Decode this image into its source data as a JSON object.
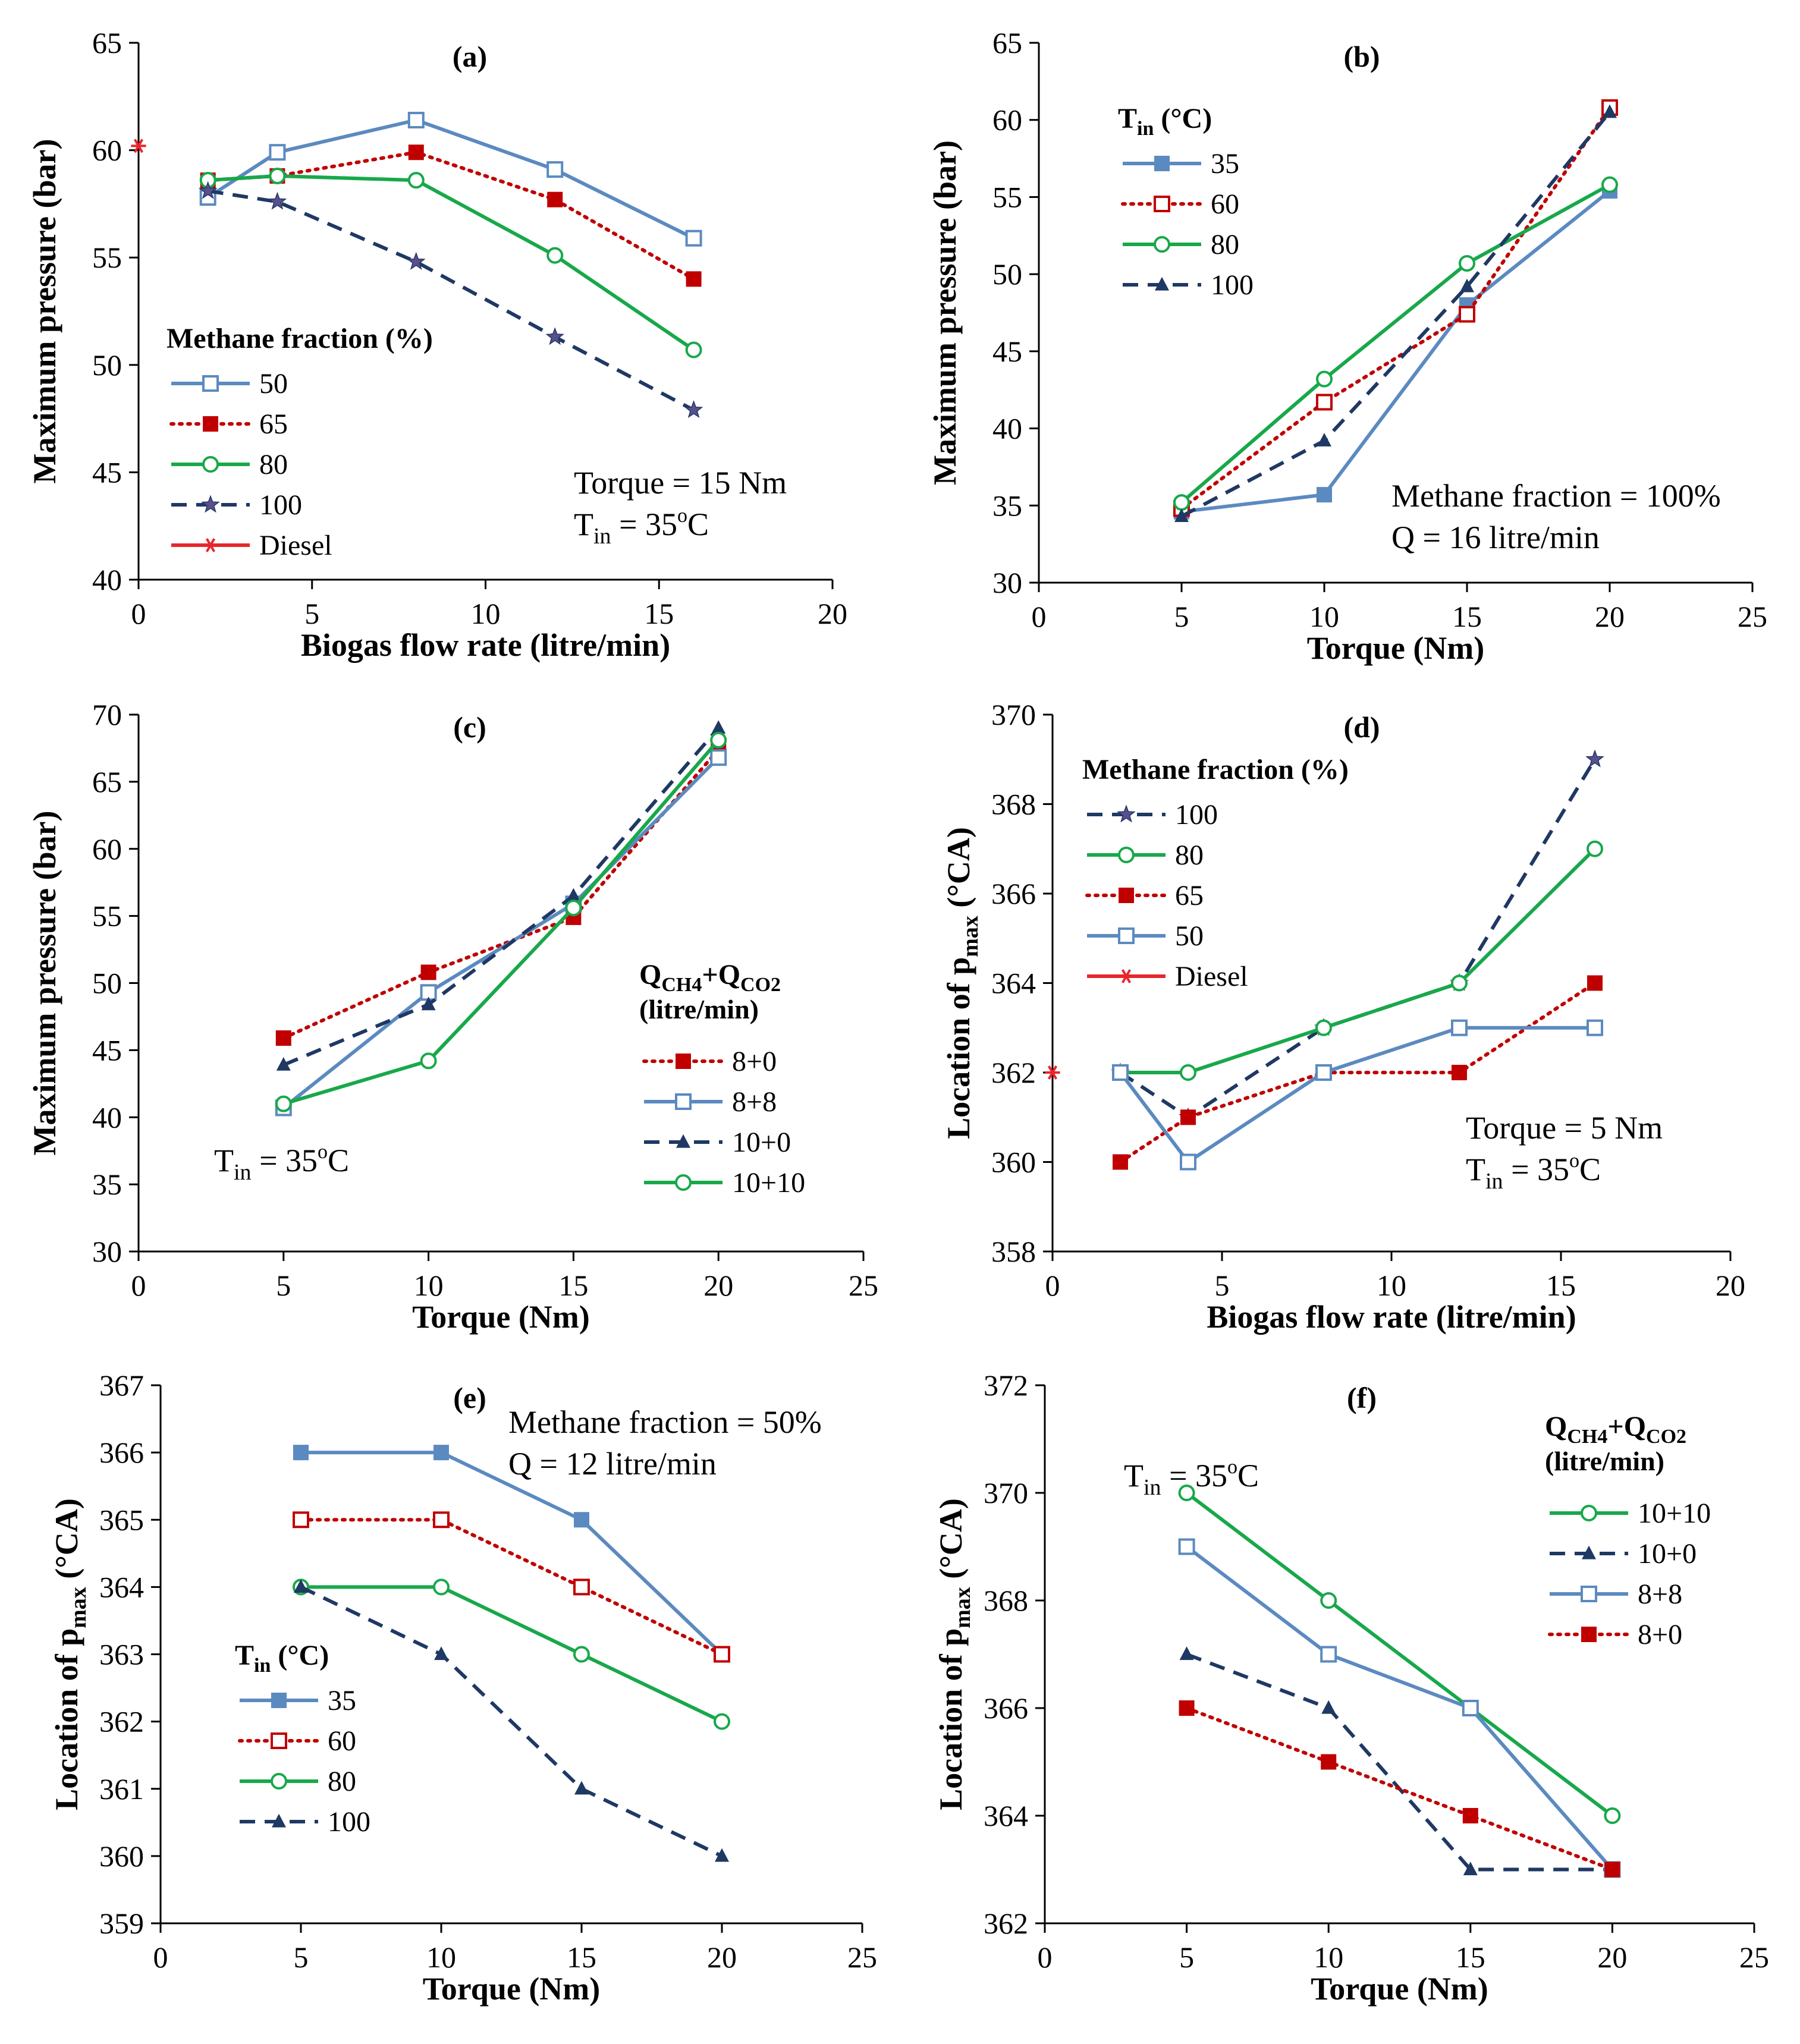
{
  "chart_data": [
    {
      "id": "a",
      "type": "line",
      "panel_label": "(a)",
      "title": "",
      "xlabel": "Biogas flow rate (litre/min)",
      "ylabel": "Maximum pressure (bar)",
      "xlim": [
        0,
        20
      ],
      "ylim": [
        40,
        65
      ],
      "xticks": [
        0,
        5,
        10,
        15,
        20
      ],
      "yticks": [
        40,
        45,
        50,
        55,
        60,
        65
      ],
      "legend": {
        "title": "Methane fraction (%)",
        "title_sub": "",
        "title_post": "",
        "title_line2": "",
        "position": "lower-left"
      },
      "annotation": {
        "line1": "Torque = 15 Nm",
        "line2_pre": "T",
        "line2_sub": "in",
        "line2_post": " = 35",
        "line2_sup": "o",
        "line2_end": "C"
      },
      "series": [
        {
          "name": "50",
          "color": "#5B8AC0",
          "dash": "solid",
          "marker": "square-open",
          "x": [
            2,
            4,
            8,
            12,
            16
          ],
          "values": [
            57.8,
            59.9,
            61.4,
            59.1,
            55.9
          ]
        },
        {
          "name": "65",
          "color": "#C00000",
          "dash": "dot",
          "marker": "square-filled",
          "x": [
            2,
            4,
            8,
            12,
            16
          ],
          "values": [
            58.6,
            58.8,
            59.9,
            57.7,
            54.0
          ]
        },
        {
          "name": "80",
          "color": "#18A84A",
          "dash": "solid",
          "marker": "circle-open",
          "x": [
            2,
            4,
            8,
            12,
            16
          ],
          "values": [
            58.6,
            58.8,
            58.6,
            55.1,
            50.7
          ]
        },
        {
          "name": "100",
          "color": "#1F3864",
          "dash": "dash",
          "marker": "star-filled",
          "x": [
            2,
            4,
            8,
            12,
            16
          ],
          "values": [
            58.1,
            57.6,
            54.8,
            51.3,
            47.9
          ]
        },
        {
          "name": "Diesel",
          "color": "#E8262B",
          "dash": "solid",
          "marker": "asterisk",
          "x": [
            0
          ],
          "values": [
            60.2
          ]
        }
      ]
    },
    {
      "id": "b",
      "type": "line",
      "panel_label": "(b)",
      "title": "",
      "xlabel": "Torque (Nm)",
      "ylabel": "Maximum pressure (bar)",
      "xlim": [
        0,
        25
      ],
      "ylim": [
        30,
        65
      ],
      "xticks": [
        0,
        5,
        10,
        15,
        20,
        25
      ],
      "yticks": [
        30,
        35,
        40,
        45,
        50,
        55,
        60,
        65
      ],
      "legend": {
        "title": "T",
        "title_sub": "in",
        "title_post": " (°C)",
        "title_line2": "",
        "position": "top-left"
      },
      "annotation": {
        "line1": "Methane fraction = 100%",
        "line2_pre": "Q = 16 litre/min",
        "line2_sub": "",
        "line2_post": "",
        "line2_sup": "",
        "line2_end": ""
      },
      "series": [
        {
          "name": "35",
          "color": "#5B8AC0",
          "dash": "solid",
          "marker": "square-filled",
          "x": [
            5,
            10,
            15,
            20
          ],
          "values": [
            34.6,
            35.7,
            48.0,
            55.4
          ]
        },
        {
          "name": "60",
          "color": "#C00000",
          "dash": "dot",
          "marker": "square-open",
          "x": [
            5,
            10,
            15,
            20
          ],
          "values": [
            34.8,
            41.7,
            47.4,
            60.8
          ]
        },
        {
          "name": "80",
          "color": "#18A84A",
          "dash": "solid",
          "marker": "circle-open",
          "x": [
            5,
            10,
            15,
            20
          ],
          "values": [
            35.2,
            43.2,
            50.7,
            55.8
          ]
        },
        {
          "name": "100",
          "color": "#1F3864",
          "dash": "dash",
          "marker": "triangle-filled",
          "x": [
            5,
            10,
            15,
            20
          ],
          "values": [
            34.3,
            39.2,
            49.2,
            60.5
          ]
        }
      ]
    },
    {
      "id": "c",
      "type": "line",
      "panel_label": "(c)",
      "title": "",
      "xlabel": "Torque (Nm)",
      "ylabel": "Maximum pressure (bar)",
      "xlim": [
        0,
        25
      ],
      "ylim": [
        30,
        70
      ],
      "xticks": [
        0,
        5,
        10,
        15,
        20,
        25
      ],
      "yticks": [
        30,
        35,
        40,
        45,
        50,
        55,
        60,
        65,
        70
      ],
      "legend": {
        "title": "Q",
        "title_sub": "CH4",
        "title_post": "+Q",
        "title_sub2": "CO2",
        "title_line2": "(litre/min)",
        "position": "right"
      },
      "annotation": {
        "line1": "",
        "line2_pre": "T",
        "line2_sub": "in",
        "line2_post": " = 35",
        "line2_sup": "o",
        "line2_end": "C"
      },
      "series": [
        {
          "name": "8+0",
          "color": "#C00000",
          "dash": "dot",
          "marker": "square-filled",
          "x": [
            5,
            10,
            15,
            20
          ],
          "values": [
            45.9,
            50.8,
            54.9,
            67.4
          ]
        },
        {
          "name": "8+8",
          "color": "#5B8AC0",
          "dash": "solid",
          "marker": "square-open",
          "x": [
            5,
            10,
            15,
            20
          ],
          "values": [
            40.7,
            49.3,
            55.9,
            66.8
          ]
        },
        {
          "name": "10+0",
          "color": "#1F3864",
          "dash": "dash",
          "marker": "triangle-filled",
          "x": [
            5,
            10,
            15,
            20
          ],
          "values": [
            43.9,
            48.4,
            56.5,
            69.0
          ]
        },
        {
          "name": "10+10",
          "color": "#18A84A",
          "dash": "solid",
          "marker": "circle-open",
          "x": [
            5,
            10,
            15,
            20
          ],
          "values": [
            41.0,
            44.2,
            55.6,
            68.1
          ]
        }
      ]
    },
    {
      "id": "d",
      "type": "line",
      "panel_label": "(d)",
      "title": "",
      "xlabel": "Biogas flow rate (litre/min)",
      "ylabel": "Location of p_max (°CA)",
      "xlim": [
        0,
        20
      ],
      "ylim": [
        358,
        370
      ],
      "xticks": [
        0,
        5,
        10,
        15,
        20
      ],
      "yticks": [
        358,
        360,
        362,
        364,
        366,
        368,
        370
      ],
      "legend": {
        "title": "Methane fraction (%)",
        "title_sub": "",
        "title_post": "",
        "title_line2": "",
        "position": "top-left"
      },
      "annotation": {
        "line1": "Torque = 5 Nm",
        "line2_pre": "T",
        "line2_sub": "in",
        "line2_post": " = 35",
        "line2_sup": "o",
        "line2_end": "C"
      },
      "series": [
        {
          "name": "100",
          "color": "#1F3864",
          "dash": "dash",
          "marker": "star-filled",
          "x": [
            2,
            4,
            8,
            12,
            16
          ],
          "values": [
            362,
            361,
            363,
            364,
            369
          ]
        },
        {
          "name": "80",
          "color": "#18A84A",
          "dash": "solid",
          "marker": "circle-open",
          "x": [
            2,
            4,
            8,
            12,
            16
          ],
          "values": [
            362,
            362,
            363,
            364,
            367
          ]
        },
        {
          "name": "65",
          "color": "#C00000",
          "dash": "dot",
          "marker": "square-filled",
          "x": [
            2,
            4,
            8,
            12,
            16
          ],
          "values": [
            360,
            361,
            362,
            362,
            364
          ]
        },
        {
          "name": "50",
          "color": "#5B8AC0",
          "dash": "solid",
          "marker": "square-open",
          "x": [
            2,
            4,
            8,
            12,
            16
          ],
          "values": [
            362,
            360,
            362,
            363,
            363
          ]
        },
        {
          "name": "Diesel",
          "color": "#E8262B",
          "dash": "solid",
          "marker": "asterisk",
          "x": [
            0
          ],
          "values": [
            362
          ]
        }
      ]
    },
    {
      "id": "e",
      "type": "line",
      "panel_label": "(e)",
      "title": "",
      "xlabel": "Torque (Nm)",
      "ylabel": "Location of p_max (°CA)",
      "xlim": [
        0,
        25
      ],
      "ylim": [
        359,
        367
      ],
      "xticks": [
        0,
        5,
        10,
        15,
        20,
        25
      ],
      "yticks": [
        359,
        360,
        361,
        362,
        363,
        364,
        365,
        366,
        367
      ],
      "legend": {
        "title": "T",
        "title_sub": "in",
        "title_post": " (°C)",
        "title_line2": "",
        "position": "lower-left"
      },
      "annotation": {
        "line1": "Methane fraction = 50%",
        "line2_pre": "Q = 12 litre/min",
        "line2_sub": "",
        "line2_post": "",
        "line2_sup": "",
        "line2_end": ""
      },
      "series": [
        {
          "name": "35",
          "color": "#5B8AC0",
          "dash": "solid",
          "marker": "square-filled",
          "x": [
            5,
            10,
            15,
            20
          ],
          "values": [
            366,
            366,
            365,
            363
          ]
        },
        {
          "name": "60",
          "color": "#C00000",
          "dash": "dot",
          "marker": "square-open",
          "x": [
            5,
            10,
            15,
            20
          ],
          "values": [
            365,
            365,
            364,
            363
          ]
        },
        {
          "name": "80",
          "color": "#18A84A",
          "dash": "solid",
          "marker": "circle-open",
          "x": [
            5,
            10,
            15,
            20
          ],
          "values": [
            364,
            364,
            363,
            362
          ]
        },
        {
          "name": "100",
          "color": "#1F3864",
          "dash": "dash",
          "marker": "triangle-filled",
          "x": [
            5,
            10,
            15,
            20
          ],
          "values": [
            364,
            363,
            361,
            360
          ]
        }
      ]
    },
    {
      "id": "f",
      "type": "line",
      "panel_label": "(f)",
      "title": "",
      "xlabel": "Torque (Nm)",
      "ylabel": "Location of p_max (°CA)",
      "xlim": [
        0,
        25
      ],
      "ylim": [
        362,
        372
      ],
      "xticks": [
        0,
        5,
        10,
        15,
        20,
        25
      ],
      "yticks": [
        362,
        364,
        366,
        368,
        370,
        372
      ],
      "legend": {
        "title": "Q",
        "title_sub": "CH4",
        "title_post": "+Q",
        "title_sub2": "CO2",
        "title_line2": "(litre/min)",
        "position": "top-right"
      },
      "annotation": {
        "line1": "",
        "line2_pre": "T",
        "line2_sub": "in",
        "line2_post": " = 35",
        "line2_sup": "o",
        "line2_end": "C"
      },
      "series": [
        {
          "name": "10+10",
          "color": "#18A84A",
          "dash": "solid",
          "marker": "circle-open",
          "x": [
            5,
            10,
            15,
            20
          ],
          "values": [
            370,
            368,
            366,
            364
          ]
        },
        {
          "name": "10+0",
          "color": "#1F3864",
          "dash": "dash",
          "marker": "triangle-filled",
          "x": [
            5,
            10,
            15,
            20
          ],
          "values": [
            367,
            366,
            363,
            363
          ]
        },
        {
          "name": "8+8",
          "color": "#5B8AC0",
          "dash": "solid",
          "marker": "square-open",
          "x": [
            5,
            10,
            15,
            20
          ],
          "values": [
            369,
            367,
            366,
            363
          ]
        },
        {
          "name": "8+0",
          "color": "#C00000",
          "dash": "dot",
          "marker": "square-filled",
          "x": [
            5,
            10,
            15,
            20
          ],
          "values": [
            366,
            365,
            364,
            363
          ]
        }
      ]
    }
  ]
}
